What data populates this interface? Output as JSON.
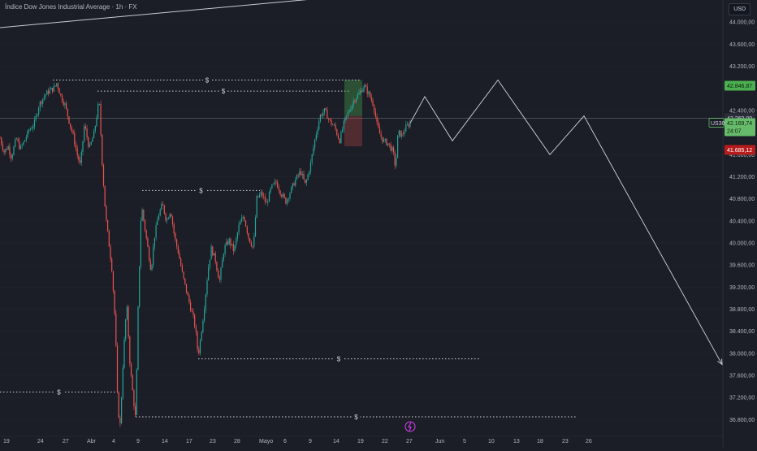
{
  "header": {
    "title": "Índice Dow Jones Industrial Average · 1h · FX",
    "currency": "USD"
  },
  "symbol": "US30",
  "price_tags": {
    "top_level": "42.846,87",
    "mid_level": "42.260,00",
    "current": "42.169,74",
    "countdown": "24:07",
    "low_level": "41.685,12"
  },
  "liquidity_marker": "$",
  "colors": {
    "up": "#26a69a",
    "down": "#ef5350",
    "green_tag": "#4caf50",
    "red_tag": "#b71c1c",
    "bg": "#1b1e26",
    "grid": "#232631"
  },
  "chart_data": {
    "type": "candlestick",
    "title": "Índice Dow Jones Industrial Average · 1h · FX",
    "y_ticks": [
      "44.000,00",
      "43.600,00",
      "43.200,00",
      "42.400,00",
      "41.600,00",
      "41.200,00",
      "40.800,00",
      "40.400,00",
      "40.000,00",
      "39.600,00",
      "39.200,00",
      "38.800,00",
      "38.400,00",
      "38.000,00",
      "37.600,00",
      "37.200,00",
      "36.800,00"
    ],
    "x_ticks": [
      "19",
      "24",
      "27",
      "Abr",
      "4",
      "9",
      "14",
      "17",
      "23",
      "28",
      "Mayo",
      "6",
      "9",
      "14",
      "19",
      "22",
      "27",
      "Jun",
      "5",
      "10",
      "13",
      "18",
      "23",
      "26"
    ],
    "ylim": [
      36600,
      44400
    ],
    "price_series": [
      {
        "x": 0,
        "y": 41900
      },
      {
        "x": 5,
        "y": 41650
      },
      {
        "x": 10,
        "y": 41750
      },
      {
        "x": 14,
        "y": 41550
      },
      {
        "x": 20,
        "y": 41900
      },
      {
        "x": 25,
        "y": 41700
      },
      {
        "x": 30,
        "y": 41850
      },
      {
        "x": 36,
        "y": 42050
      },
      {
        "x": 42,
        "y": 42150
      },
      {
        "x": 48,
        "y": 42500
      },
      {
        "x": 54,
        "y": 42650
      },
      {
        "x": 60,
        "y": 42750
      },
      {
        "x": 66,
        "y": 42800
      },
      {
        "x": 70,
        "y": 42900
      },
      {
        "x": 75,
        "y": 42650
      },
      {
        "x": 80,
        "y": 42500
      },
      {
        "x": 86,
        "y": 42150
      },
      {
        "x": 90,
        "y": 41950
      },
      {
        "x": 95,
        "y": 41600
      },
      {
        "x": 99,
        "y": 41400
      },
      {
        "x": 104,
        "y": 42150
      },
      {
        "x": 110,
        "y": 41700
      },
      {
        "x": 116,
        "y": 42000
      },
      {
        "x": 122,
        "y": 42600
      },
      {
        "x": 126,
        "y": 41400
      },
      {
        "x": 130,
        "y": 40500
      },
      {
        "x": 134,
        "y": 40000
      },
      {
        "x": 138,
        "y": 39500
      },
      {
        "x": 142,
        "y": 38500
      },
      {
        "x": 145,
        "y": 37000
      },
      {
        "x": 148,
        "y": 36700
      },
      {
        "x": 152,
        "y": 38000
      },
      {
        "x": 156,
        "y": 38900
      },
      {
        "x": 160,
        "y": 37800
      },
      {
        "x": 164,
        "y": 37200
      },
      {
        "x": 167,
        "y": 36800
      },
      {
        "x": 170,
        "y": 38800
      },
      {
        "x": 174,
        "y": 40700
      },
      {
        "x": 178,
        "y": 40300
      },
      {
        "x": 182,
        "y": 39900
      },
      {
        "x": 186,
        "y": 39500
      },
      {
        "x": 190,
        "y": 40100
      },
      {
        "x": 195,
        "y": 40500
      },
      {
        "x": 200,
        "y": 40700
      },
      {
        "x": 205,
        "y": 40400
      },
      {
        "x": 210,
        "y": 40600
      },
      {
        "x": 215,
        "y": 40100
      },
      {
        "x": 220,
        "y": 39800
      },
      {
        "x": 225,
        "y": 39400
      },
      {
        "x": 230,
        "y": 39100
      },
      {
        "x": 235,
        "y": 38800
      },
      {
        "x": 238,
        "y": 38650
      },
      {
        "x": 241,
        "y": 38400
      },
      {
        "x": 244,
        "y": 37950
      },
      {
        "x": 248,
        "y": 38400
      },
      {
        "x": 252,
        "y": 38900
      },
      {
        "x": 256,
        "y": 39500
      },
      {
        "x": 260,
        "y": 39900
      },
      {
        "x": 265,
        "y": 39700
      },
      {
        "x": 270,
        "y": 39300
      },
      {
        "x": 276,
        "y": 39900
      },
      {
        "x": 282,
        "y": 40050
      },
      {
        "x": 288,
        "y": 39850
      },
      {
        "x": 294,
        "y": 40300
      },
      {
        "x": 300,
        "y": 40500
      },
      {
        "x": 306,
        "y": 40100
      },
      {
        "x": 312,
        "y": 39900
      },
      {
        "x": 316,
        "y": 40800
      },
      {
        "x": 322,
        "y": 40900
      },
      {
        "x": 328,
        "y": 40700
      },
      {
        "x": 334,
        "y": 41000
      },
      {
        "x": 340,
        "y": 41100
      },
      {
        "x": 346,
        "y": 40900
      },
      {
        "x": 352,
        "y": 40750
      },
      {
        "x": 358,
        "y": 40950
      },
      {
        "x": 364,
        "y": 41150
      },
      {
        "x": 370,
        "y": 41300
      },
      {
        "x": 376,
        "y": 41050
      },
      {
        "x": 382,
        "y": 41400
      },
      {
        "x": 388,
        "y": 41900
      },
      {
        "x": 394,
        "y": 42300
      },
      {
        "x": 400,
        "y": 42400
      },
      {
        "x": 406,
        "y": 42200
      },
      {
        "x": 412,
        "y": 42100
      },
      {
        "x": 418,
        "y": 41850
      },
      {
        "x": 424,
        "y": 42200
      },
      {
        "x": 430,
        "y": 42400
      },
      {
        "x": 436,
        "y": 42600
      },
      {
        "x": 442,
        "y": 42700
      },
      {
        "x": 448,
        "y": 42850
      },
      {
        "x": 454,
        "y": 42700
      },
      {
        "x": 460,
        "y": 42500
      },
      {
        "x": 464,
        "y": 42150
      },
      {
        "x": 468,
        "y": 41950
      },
      {
        "x": 472,
        "y": 41850
      },
      {
        "x": 478,
        "y": 41800
      },
      {
        "x": 484,
        "y": 41650
      },
      {
        "x": 487,
        "y": 41350
      },
      {
        "x": 490,
        "y": 42000
      },
      {
        "x": 495,
        "y": 41950
      },
      {
        "x": 500,
        "y": 42100
      },
      {
        "x": 505,
        "y": 42170
      }
    ],
    "projection": [
      {
        "x": 505,
        "y": 42170
      },
      {
        "x": 523,
        "y": 42650
      },
      {
        "x": 557,
        "y": 41850
      },
      {
        "x": 613,
        "y": 42950
      },
      {
        "x": 677,
        "y": 41600
      },
      {
        "x": 719,
        "y": 42300
      },
      {
        "x": 889,
        "y": 37800
      }
    ],
    "liquidity_levels": [
      {
        "y": 42950,
        "x_start": 65,
        "x_end": 445
      },
      {
        "y": 42750,
        "x_start": 120,
        "x_end": 430
      },
      {
        "y": 40950,
        "x_start": 175,
        "x_end": 320
      },
      {
        "y": 37900,
        "x_start": 244,
        "x_end": 590
      },
      {
        "y": 37300,
        "x_start": 0,
        "x_end": 145
      },
      {
        "y": 36850,
        "x_start": 167,
        "x_end": 710
      }
    ],
    "horizontal_line": 42260,
    "trendline": [
      {
        "x": 0,
        "y": 43900
      },
      {
        "x": 410,
        "y": 44450
      }
    ]
  }
}
